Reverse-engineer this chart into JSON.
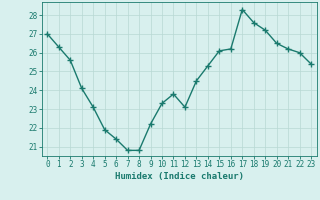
{
  "x": [
    0,
    1,
    2,
    3,
    4,
    5,
    6,
    7,
    8,
    9,
    10,
    11,
    12,
    13,
    14,
    15,
    16,
    17,
    18,
    19,
    20,
    21,
    22,
    23
  ],
  "y": [
    27.0,
    26.3,
    25.6,
    24.1,
    23.1,
    21.9,
    21.4,
    20.8,
    20.8,
    22.2,
    23.3,
    23.8,
    23.1,
    24.5,
    25.3,
    26.1,
    26.2,
    28.3,
    27.6,
    27.2,
    26.5,
    26.2,
    26.0,
    25.4
  ],
  "line_color": "#1a7a6e",
  "marker": "+",
  "marker_size": 4,
  "marker_lw": 1.0,
  "bg_color": "#d8f0ee",
  "grid_color": "#b8d8d4",
  "xlabel": "Humidex (Indice chaleur)",
  "ylim": [
    20.5,
    28.7
  ],
  "yticks": [
    21,
    22,
    23,
    24,
    25,
    26,
    27,
    28
  ],
  "xticks": [
    0,
    1,
    2,
    3,
    4,
    5,
    6,
    7,
    8,
    9,
    10,
    11,
    12,
    13,
    14,
    15,
    16,
    17,
    18,
    19,
    20,
    21,
    22,
    23
  ],
  "tick_fontsize": 5.5,
  "xlabel_fontsize": 6.5,
  "line_width": 1.0
}
